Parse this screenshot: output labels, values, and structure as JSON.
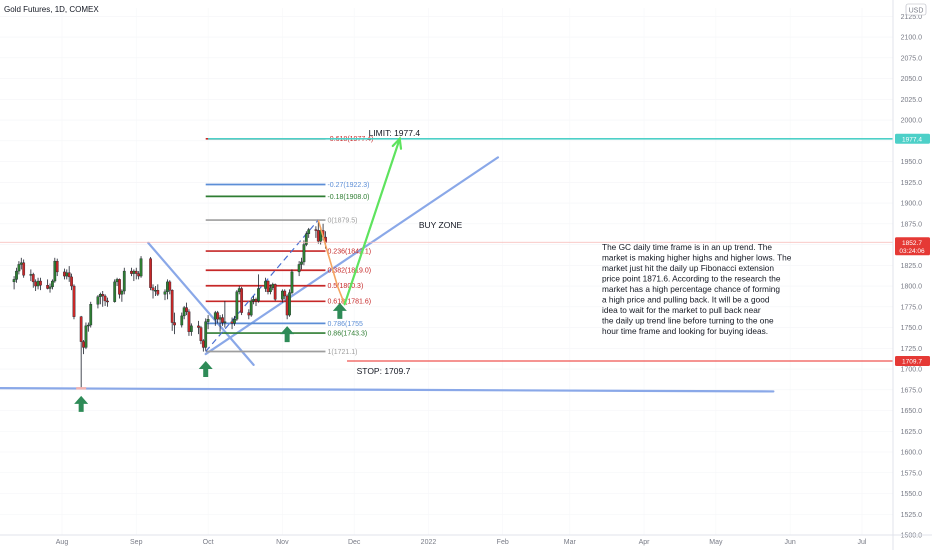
{
  "header": {
    "symbol": "Gold Futures, 1D, COMEX"
  },
  "colors": {
    "up": "#26a69a",
    "down": "#ef5350",
    "candle_body": "#2e7d32",
    "fib_red": "#c62828",
    "fib_blue": "#5c8ed6",
    "fib_green": "#2e7d32",
    "fib_gray": "#9e9e9e",
    "trendline": "#8aa8e8",
    "target_line": "#4dd0c8",
    "stop_line": "#ef5350",
    "arrow_green": "#5ee35e",
    "orange_path": "#f4a460",
    "price_tag": "#e53935",
    "up_arrow": "#2e8b57"
  },
  "chart_data": {
    "type": "candlestick",
    "title": "Gold Futures, 1D, COMEX",
    "currency": "USD",
    "ylim": [
      1500,
      2135
    ],
    "y_ticks": [
      1500,
      1525,
      1550,
      1575,
      1600,
      1625,
      1650,
      1675,
      1700,
      1725,
      1750,
      1775,
      1800,
      1825,
      1850,
      1875,
      1900,
      1925,
      1950,
      1975,
      2000,
      2025,
      2050,
      2075,
      2100,
      2125
    ],
    "y_tick_labels": [
      "1500.0",
      "1525.0",
      "1550.0",
      "1575.0",
      "1600.0",
      "1625.0",
      "1650.0",
      "1675.0",
      "1700.0",
      "1725.0",
      "1750.0",
      "1775.0",
      "1800.0",
      "1825.0",
      "1850.0",
      "1875.0",
      "1900.0",
      "1925.0",
      "1950.0",
      "1975.0",
      "2000.0",
      "2025.0",
      "2050.0",
      "2075.0",
      "2100.0",
      "2125.0"
    ],
    "x_ticks": [
      "Aug",
      "Sep",
      "Oct",
      "Nov",
      "Dec",
      "2022",
      "Feb",
      "Mar",
      "Apr",
      "May",
      "Jun",
      "Jul"
    ],
    "x_tick_dates": [
      "2021-08-01",
      "2021-09-01",
      "2021-10-01",
      "2021-11-01",
      "2021-12-01",
      "2022-01-01",
      "2022-02-01",
      "2022-03-01",
      "2022-04-01",
      "2022-05-01",
      "2022-06-01",
      "2022-07-01"
    ],
    "candles": [
      {
        "d": "2021-07-12",
        "o": 1805,
        "h": 1812,
        "l": 1796,
        "c": 1808
      },
      {
        "d": "2021-07-13",
        "o": 1808,
        "h": 1822,
        "l": 1804,
        "c": 1818
      },
      {
        "d": "2021-07-14",
        "o": 1818,
        "h": 1830,
        "l": 1814,
        "c": 1826
      },
      {
        "d": "2021-07-15",
        "o": 1826,
        "h": 1834,
        "l": 1820,
        "c": 1828
      },
      {
        "d": "2021-07-16",
        "o": 1828,
        "h": 1832,
        "l": 1810,
        "c": 1813
      },
      {
        "d": "2021-07-19",
        "o": 1813,
        "h": 1820,
        "l": 1806,
        "c": 1814
      },
      {
        "d": "2021-07-20",
        "o": 1814,
        "h": 1816,
        "l": 1798,
        "c": 1805
      },
      {
        "d": "2021-07-21",
        "o": 1805,
        "h": 1808,
        "l": 1794,
        "c": 1800
      },
      {
        "d": "2021-07-22",
        "o": 1800,
        "h": 1810,
        "l": 1796,
        "c": 1806
      },
      {
        "d": "2021-07-23",
        "o": 1806,
        "h": 1810,
        "l": 1795,
        "c": 1801
      },
      {
        "d": "2021-07-26",
        "o": 1801,
        "h": 1808,
        "l": 1796,
        "c": 1797
      },
      {
        "d": "2021-07-27",
        "o": 1797,
        "h": 1803,
        "l": 1792,
        "c": 1799
      },
      {
        "d": "2021-07-28",
        "o": 1799,
        "h": 1808,
        "l": 1796,
        "c": 1806
      },
      {
        "d": "2021-07-29",
        "o": 1806,
        "h": 1834,
        "l": 1804,
        "c": 1830
      },
      {
        "d": "2021-07-30",
        "o": 1830,
        "h": 1833,
        "l": 1812,
        "c": 1817
      },
      {
        "d": "2021-08-02",
        "o": 1817,
        "h": 1821,
        "l": 1808,
        "c": 1812
      },
      {
        "d": "2021-08-03",
        "o": 1812,
        "h": 1820,
        "l": 1808,
        "c": 1816
      },
      {
        "d": "2021-08-04",
        "o": 1816,
        "h": 1824,
        "l": 1805,
        "c": 1811
      },
      {
        "d": "2021-08-05",
        "o": 1811,
        "h": 1815,
        "l": 1795,
        "c": 1800
      },
      {
        "d": "2021-08-06",
        "o": 1800,
        "h": 1802,
        "l": 1760,
        "c": 1763
      },
      {
        "d": "2021-08-09",
        "o": 1763,
        "h": 1764,
        "l": 1677,
        "c": 1733
      },
      {
        "d": "2021-08-10",
        "o": 1733,
        "h": 1735,
        "l": 1718,
        "c": 1726
      },
      {
        "d": "2021-08-11",
        "o": 1726,
        "h": 1756,
        "l": 1724,
        "c": 1752
      },
      {
        "d": "2021-08-12",
        "o": 1752,
        "h": 1756,
        "l": 1745,
        "c": 1753
      },
      {
        "d": "2021-08-13",
        "o": 1753,
        "h": 1781,
        "l": 1750,
        "c": 1778
      },
      {
        "d": "2021-08-16",
        "o": 1778,
        "h": 1789,
        "l": 1773,
        "c": 1787
      },
      {
        "d": "2021-08-17",
        "o": 1787,
        "h": 1792,
        "l": 1778,
        "c": 1790
      },
      {
        "d": "2021-08-18",
        "o": 1790,
        "h": 1794,
        "l": 1775,
        "c": 1788
      },
      {
        "d": "2021-08-19",
        "o": 1788,
        "h": 1790,
        "l": 1776,
        "c": 1782
      },
      {
        "d": "2021-08-20",
        "o": 1782,
        "h": 1786,
        "l": 1775,
        "c": 1781
      },
      {
        "d": "2021-08-23",
        "o": 1781,
        "h": 1808,
        "l": 1780,
        "c": 1805
      },
      {
        "d": "2021-08-24",
        "o": 1805,
        "h": 1810,
        "l": 1800,
        "c": 1808
      },
      {
        "d": "2021-08-25",
        "o": 1808,
        "h": 1809,
        "l": 1785,
        "c": 1790
      },
      {
        "d": "2021-08-26",
        "o": 1790,
        "h": 1796,
        "l": 1781,
        "c": 1794
      },
      {
        "d": "2021-08-27",
        "o": 1794,
        "h": 1822,
        "l": 1790,
        "c": 1818
      },
      {
        "d": "2021-08-30",
        "o": 1818,
        "h": 1822,
        "l": 1812,
        "c": 1815
      },
      {
        "d": "2021-08-31",
        "o": 1815,
        "h": 1820,
        "l": 1806,
        "c": 1818
      },
      {
        "d": "2021-09-01",
        "o": 1818,
        "h": 1822,
        "l": 1808,
        "c": 1815
      },
      {
        "d": "2021-09-02",
        "o": 1815,
        "h": 1818,
        "l": 1808,
        "c": 1812
      },
      {
        "d": "2021-09-03",
        "o": 1812,
        "h": 1836,
        "l": 1810,
        "c": 1833
      },
      {
        "d": "2021-09-07",
        "o": 1833,
        "h": 1835,
        "l": 1795,
        "c": 1798
      },
      {
        "d": "2021-09-08",
        "o": 1798,
        "h": 1802,
        "l": 1785,
        "c": 1795
      },
      {
        "d": "2021-09-09",
        "o": 1795,
        "h": 1800,
        "l": 1788,
        "c": 1795
      },
      {
        "d": "2021-09-10",
        "o": 1795,
        "h": 1802,
        "l": 1788,
        "c": 1790
      },
      {
        "d": "2021-09-13",
        "o": 1790,
        "h": 1796,
        "l": 1783,
        "c": 1793
      },
      {
        "d": "2021-09-14",
        "o": 1793,
        "h": 1808,
        "l": 1784,
        "c": 1805
      },
      {
        "d": "2021-09-15",
        "o": 1805,
        "h": 1807,
        "l": 1790,
        "c": 1795
      },
      {
        "d": "2021-09-16",
        "o": 1795,
        "h": 1796,
        "l": 1746,
        "c": 1756
      },
      {
        "d": "2021-09-17",
        "o": 1756,
        "h": 1768,
        "l": 1742,
        "c": 1753
      },
      {
        "d": "2021-09-20",
        "o": 1753,
        "h": 1768,
        "l": 1750,
        "c": 1764
      },
      {
        "d": "2021-09-21",
        "o": 1764,
        "h": 1776,
        "l": 1760,
        "c": 1774
      },
      {
        "d": "2021-09-22",
        "o": 1774,
        "h": 1780,
        "l": 1765,
        "c": 1769
      },
      {
        "d": "2021-09-23",
        "o": 1769,
        "h": 1772,
        "l": 1740,
        "c": 1745
      },
      {
        "d": "2021-09-24",
        "o": 1745,
        "h": 1755,
        "l": 1740,
        "c": 1752
      },
      {
        "d": "2021-09-27",
        "o": 1752,
        "h": 1758,
        "l": 1742,
        "c": 1750
      },
      {
        "d": "2021-09-28",
        "o": 1750,
        "h": 1752,
        "l": 1730,
        "c": 1734
      },
      {
        "d": "2021-09-29",
        "o": 1734,
        "h": 1736,
        "l": 1721,
        "c": 1726
      },
      {
        "d": "2021-09-30",
        "o": 1726,
        "h": 1761,
        "l": 1722,
        "c": 1757
      },
      {
        "d": "2021-10-01",
        "o": 1757,
        "h": 1765,
        "l": 1748,
        "c": 1760
      },
      {
        "d": "2021-10-04",
        "o": 1760,
        "h": 1770,
        "l": 1752,
        "c": 1768
      },
      {
        "d": "2021-10-05",
        "o": 1768,
        "h": 1770,
        "l": 1755,
        "c": 1760
      },
      {
        "d": "2021-10-06",
        "o": 1760,
        "h": 1765,
        "l": 1745,
        "c": 1762
      },
      {
        "d": "2021-10-07",
        "o": 1762,
        "h": 1766,
        "l": 1752,
        "c": 1756
      },
      {
        "d": "2021-10-08",
        "o": 1756,
        "h": 1782,
        "l": 1750,
        "c": 1757
      },
      {
        "d": "2021-10-11",
        "o": 1757,
        "h": 1762,
        "l": 1748,
        "c": 1755
      },
      {
        "d": "2021-10-12",
        "o": 1755,
        "h": 1764,
        "l": 1752,
        "c": 1760
      },
      {
        "d": "2021-10-13",
        "o": 1760,
        "h": 1795,
        "l": 1758,
        "c": 1793
      },
      {
        "d": "2021-10-14",
        "o": 1793,
        "h": 1800,
        "l": 1790,
        "c": 1797
      },
      {
        "d": "2021-10-15",
        "o": 1797,
        "h": 1799,
        "l": 1765,
        "c": 1768
      },
      {
        "d": "2021-10-18",
        "o": 1768,
        "h": 1772,
        "l": 1760,
        "c": 1765
      },
      {
        "d": "2021-10-19",
        "o": 1765,
        "h": 1785,
        "l": 1763,
        "c": 1782
      },
      {
        "d": "2021-10-20",
        "o": 1782,
        "h": 1788,
        "l": 1778,
        "c": 1784
      },
      {
        "d": "2021-10-21",
        "o": 1784,
        "h": 1786,
        "l": 1776,
        "c": 1782
      },
      {
        "d": "2021-10-22",
        "o": 1782,
        "h": 1814,
        "l": 1780,
        "c": 1797
      },
      {
        "d": "2021-10-25",
        "o": 1797,
        "h": 1810,
        "l": 1793,
        "c": 1806
      },
      {
        "d": "2021-10-26",
        "o": 1806,
        "h": 1807,
        "l": 1790,
        "c": 1793
      },
      {
        "d": "2021-10-27",
        "o": 1793,
        "h": 1802,
        "l": 1790,
        "c": 1798
      },
      {
        "d": "2021-10-28",
        "o": 1798,
        "h": 1804,
        "l": 1795,
        "c": 1802
      },
      {
        "d": "2021-10-29",
        "o": 1802,
        "h": 1803,
        "l": 1782,
        "c": 1784
      },
      {
        "d": "2021-11-01",
        "o": 1784,
        "h": 1796,
        "l": 1780,
        "c": 1794
      },
      {
        "d": "2021-11-02",
        "o": 1794,
        "h": 1796,
        "l": 1784,
        "c": 1788
      },
      {
        "d": "2021-11-03",
        "o": 1788,
        "h": 1790,
        "l": 1760,
        "c": 1765
      },
      {
        "d": "2021-11-04",
        "o": 1765,
        "h": 1796,
        "l": 1763,
        "c": 1792
      },
      {
        "d": "2021-11-05",
        "o": 1792,
        "h": 1820,
        "l": 1790,
        "c": 1817
      },
      {
        "d": "2021-11-08",
        "o": 1817,
        "h": 1830,
        "l": 1812,
        "c": 1826
      },
      {
        "d": "2021-11-09",
        "o": 1826,
        "h": 1834,
        "l": 1820,
        "c": 1829
      },
      {
        "d": "2021-11-10",
        "o": 1829,
        "h": 1855,
        "l": 1825,
        "c": 1850
      },
      {
        "d": "2021-11-11",
        "o": 1850,
        "h": 1866,
        "l": 1848,
        "c": 1863
      },
      {
        "d": "2021-11-12",
        "o": 1863,
        "h": 1870,
        "l": 1858,
        "c": 1868
      },
      {
        "d": "2021-11-15",
        "o": 1868,
        "h": 1872,
        "l": 1858,
        "c": 1867
      },
      {
        "d": "2021-11-16",
        "o": 1867,
        "h": 1878,
        "l": 1851,
        "c": 1854
      },
      {
        "d": "2021-11-17",
        "o": 1854,
        "h": 1871,
        "l": 1850,
        "c": 1867
      },
      {
        "d": "2021-11-18",
        "o": 1867,
        "h": 1875,
        "l": 1855,
        "c": 1859
      },
      {
        "d": "2021-11-19",
        "o": 1859,
        "h": 1866,
        "l": 1845,
        "c": 1852
      }
    ],
    "current_price": {
      "value": 1852.7,
      "label": "1852.7",
      "countdown": "03:24:06"
    },
    "fibonacci": [
      {
        "ratio": "-0.618",
        "price": 1977.4,
        "label": "-0.618(1977.4)",
        "color": "#c62828"
      },
      {
        "ratio": "-0.27",
        "price": 1922.3,
        "label": "-0.27(1922.3)",
        "color": "#5c8ed6"
      },
      {
        "ratio": "-0.18",
        "price": 1908.0,
        "label": "-0.18(1908.0)",
        "color": "#2e7d32"
      },
      {
        "ratio": "0",
        "price": 1879.5,
        "label": "0(1879.5)",
        "color": "#9e9e9e"
      },
      {
        "ratio": "0.236",
        "price": 1842.1,
        "label": "0.236(1842.1)",
        "color": "#c62828"
      },
      {
        "ratio": "0.382",
        "price": 1819.0,
        "label": "0.382(1819.0)",
        "color": "#c62828"
      },
      {
        "ratio": "0.5",
        "price": 1800.3,
        "label": "0.5(1800.3)",
        "color": "#c62828"
      },
      {
        "ratio": "0.618",
        "price": 1781.6,
        "label": "0.618(1781.6)",
        "color": "#c62828"
      },
      {
        "ratio": "0.786",
        "price": 1755.0,
        "label": "0.786(1755",
        "color": "#5c8ed6"
      },
      {
        "ratio": "0.86",
        "price": 1743.3,
        "label": "0.86(1743.3)",
        "color": "#2e7d32"
      },
      {
        "ratio": "1",
        "price": 1721.1,
        "label": "1(1721.1)",
        "color": "#9e9e9e"
      }
    ],
    "limit": {
      "price": 1977.4,
      "label": "LIMIT: 1977.4",
      "tag": "1977.4"
    },
    "stop": {
      "price": 1709.7,
      "label": "STOP: 1709.7",
      "tag": "1709.7"
    },
    "buy_zone": {
      "label": "BUY ZONE"
    },
    "note_lines": [
      "The GC daily time frame is in an up trend. The",
      "market is making higher highs and higher lows. The",
      "market just hit the daily up Fibonacci extension",
      "price point 1871.6. According to the research the",
      "market has a high percentage chance of forming",
      "a high price and pulling back.  It will be a good",
      "idea to wait for the market to pull back near",
      "the daily up trend line before turning to the one",
      "hour time frame and looking for buying ideas."
    ],
    "trendlines": [
      {
        "name": "support-horizontal",
        "from": {
          "d": "2021-07-01",
          "p": 1677
        },
        "to": {
          "d": "2022-05-25",
          "p": 1673
        }
      },
      {
        "name": "rising-trendline",
        "from": {
          "d": "2021-09-30",
          "p": 1718
        },
        "to": {
          "d": "2022-01-30",
          "p": 1955
        }
      },
      {
        "name": "falling-trendline",
        "from": {
          "d": "2021-09-06",
          "p": 1852
        },
        "to": {
          "d": "2021-10-20",
          "p": 1705
        }
      }
    ],
    "up_arrows": [
      {
        "d": "2021-08-09",
        "p": 1658
      },
      {
        "d": "2021-09-30",
        "p": 1700
      },
      {
        "d": "2021-11-03",
        "p": 1742
      },
      {
        "d": "2021-11-25",
        "p": 1770
      }
    ]
  }
}
